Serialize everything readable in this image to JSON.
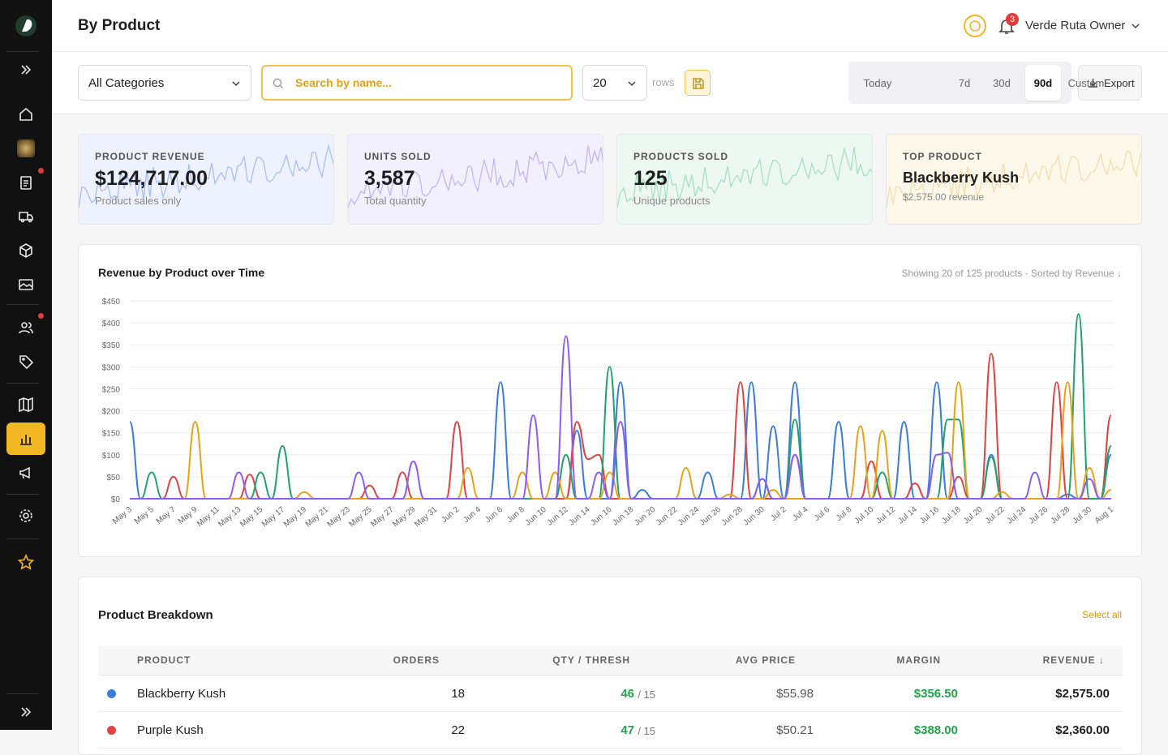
{
  "header": {
    "title": "By Product",
    "notifications": "3",
    "user": "Verde Ruta Owner"
  },
  "filters": {
    "category": "All Categories",
    "search_placeholder": "Search by name...",
    "rows_value": "20",
    "rows_label": "rows",
    "ranges": [
      "Today",
      "7d",
      "30d",
      "90d",
      "Custom"
    ],
    "active_range": 3,
    "export": "Export"
  },
  "kpis": [
    {
      "label": "PRODUCT REVENUE",
      "value": "$124,717.00",
      "sub": "Product sales only",
      "bg": "#eef2fd",
      "line": "#a9bff0"
    },
    {
      "label": "UNITS SOLD",
      "value": "3,587",
      "sub": "Total quantity",
      "bg": "#f2f0fc",
      "line": "#c3b6f2"
    },
    {
      "label": "PRODUCTS SOLD",
      "value": "125",
      "sub": "Unique products",
      "bg": "#edf8f2",
      "line": "#a8e0c2"
    },
    {
      "label": "TOP PRODUCT",
      "value": "Blackberry Kush",
      "sub": "$2,575.00 revenue",
      "bg": "#fdf8ea",
      "line": "#f3ddb0"
    }
  ],
  "chart_data": {
    "type": "line",
    "title": "Revenue by Product over Time",
    "subtitle": "Showing 20 of 125 products · Sorted by Revenue ↓",
    "categories": [
      "May 3",
      null,
      "May 5",
      null,
      "May 7",
      null,
      "May 9",
      null,
      "May 11",
      null,
      "May 13",
      null,
      "May 15",
      null,
      "May 17",
      null,
      "May 19",
      null,
      "May 21",
      null,
      "May 23",
      null,
      "May 25",
      null,
      "May 27",
      null,
      "May 29",
      null,
      "May 31",
      null,
      "Jun 2",
      null,
      "Jun 4",
      null,
      "Jun 6",
      null,
      "Jun 8",
      null,
      "Jun 10",
      null,
      "Jun 12",
      null,
      "Jun 14",
      null,
      "Jun 16",
      null,
      "Jun 18",
      null,
      "Jun 20",
      null,
      "Jun 22",
      null,
      "Jun 24",
      null,
      "Jun 26",
      null,
      "Jun 28",
      null,
      "Jun 30",
      null,
      "Jul 2",
      null,
      "Jul 4",
      null,
      "Jul 6",
      null,
      "Jul 8",
      null,
      "Jul 10",
      null,
      "Jul 12",
      null,
      "Jul 14",
      null,
      "Jul 16",
      null,
      "Jul 18",
      null,
      "Jul 20",
      null,
      "Jul 22",
      null,
      "Jul 24",
      null,
      "Jul 26",
      null,
      "Jul 28",
      null,
      "Jul 30",
      null,
      "Aug 1"
    ],
    "series": [
      {
        "color": "#3b7ddd",
        "values": [
          175,
          0,
          0,
          0,
          0,
          0,
          0,
          0,
          0,
          0,
          0,
          0,
          0,
          0,
          0,
          0,
          0,
          0,
          0,
          0,
          0,
          0,
          0,
          0,
          0,
          0,
          0,
          0,
          0,
          0,
          0,
          0,
          0,
          0,
          265,
          0,
          0,
          0,
          0,
          0,
          0,
          155,
          0,
          0,
          0,
          265,
          0,
          20,
          0,
          0,
          0,
          0,
          0,
          60,
          0,
          0,
          0,
          265,
          0,
          165,
          0,
          265,
          0,
          0,
          0,
          175,
          0,
          0,
          0,
          0,
          0,
          175,
          0,
          0,
          265,
          0,
          0,
          0,
          0,
          100,
          0,
          0,
          0,
          0,
          0,
          0,
          10,
          0,
          0,
          0,
          100
        ]
      },
      {
        "color": "#e04343",
        "values": [
          0,
          0,
          0,
          0,
          50,
          0,
          0,
          0,
          0,
          0,
          0,
          55,
          0,
          0,
          0,
          0,
          0,
          0,
          0,
          0,
          0,
          0,
          30,
          0,
          0,
          60,
          0,
          0,
          0,
          0,
          175,
          0,
          0,
          0,
          0,
          0,
          0,
          0,
          0,
          0,
          0,
          175,
          90,
          100,
          0,
          0,
          0,
          0,
          0,
          0,
          0,
          0,
          0,
          0,
          0,
          0,
          265,
          0,
          0,
          0,
          0,
          100,
          0,
          0,
          0,
          0,
          0,
          0,
          85,
          0,
          0,
          0,
          35,
          0,
          0,
          0,
          50,
          0,
          0,
          330,
          0,
          0,
          0,
          0,
          0,
          265,
          0,
          0,
          0,
          0,
          190
        ]
      },
      {
        "color": "#22a36b",
        "values": [
          0,
          0,
          60,
          0,
          0,
          0,
          0,
          0,
          0,
          0,
          0,
          0,
          60,
          0,
          120,
          0,
          0,
          0,
          0,
          0,
          0,
          0,
          0,
          0,
          0,
          0,
          0,
          0,
          0,
          0,
          0,
          0,
          0,
          0,
          0,
          0,
          0,
          0,
          0,
          0,
          100,
          0,
          0,
          0,
          300,
          0,
          0,
          0,
          0,
          0,
          0,
          0,
          0,
          0,
          0,
          0,
          0,
          0,
          45,
          0,
          0,
          180,
          0,
          0,
          0,
          0,
          0,
          0,
          0,
          60,
          0,
          0,
          0,
          0,
          0,
          180,
          180,
          0,
          0,
          95,
          0,
          0,
          0,
          0,
          0,
          0,
          0,
          420,
          0,
          0,
          120
        ]
      },
      {
        "color": "#e8a21c",
        "values": [
          0,
          0,
          0,
          0,
          0,
          0,
          175,
          0,
          0,
          0,
          0,
          0,
          0,
          0,
          0,
          0,
          15,
          0,
          0,
          0,
          0,
          0,
          0,
          0,
          0,
          0,
          0,
          0,
          0,
          0,
          0,
          70,
          0,
          0,
          0,
          0,
          60,
          0,
          0,
          60,
          0,
          0,
          0,
          0,
          60,
          0,
          0,
          0,
          0,
          0,
          0,
          70,
          0,
          0,
          0,
          10,
          0,
          0,
          0,
          20,
          0,
          0,
          0,
          0,
          0,
          0,
          0,
          165,
          0,
          155,
          0,
          0,
          0,
          0,
          0,
          0,
          265,
          0,
          0,
          0,
          15,
          0,
          0,
          0,
          0,
          0,
          265,
          0,
          70,
          0,
          20
        ]
      },
      {
        "color": "#8b5cf6",
        "values": [
          0,
          0,
          0,
          0,
          0,
          0,
          0,
          0,
          0,
          0,
          60,
          0,
          0,
          0,
          0,
          0,
          0,
          0,
          0,
          0,
          0,
          60,
          0,
          0,
          0,
          0,
          85,
          0,
          0,
          0,
          0,
          0,
          0,
          0,
          0,
          0,
          0,
          190,
          0,
          0,
          370,
          0,
          0,
          60,
          0,
          175,
          0,
          0,
          0,
          0,
          0,
          0,
          0,
          0,
          0,
          0,
          0,
          0,
          45,
          0,
          0,
          100,
          0,
          0,
          0,
          0,
          0,
          0,
          0,
          0,
          0,
          0,
          0,
          0,
          100,
          105,
          0,
          0,
          0,
          0,
          0,
          0,
          0,
          60,
          0,
          0,
          0,
          0,
          45,
          0,
          0
        ]
      }
    ],
    "ylim": [
      0,
      450
    ],
    "yticks": [
      {
        "value": 0,
        "label": "$0"
      },
      {
        "value": 50,
        "label": "$50"
      },
      {
        "value": 100,
        "label": "$100"
      },
      {
        "value": 150,
        "label": "$150"
      },
      {
        "value": 200,
        "label": "$200"
      },
      {
        "value": 250,
        "label": "$250"
      },
      {
        "value": 300,
        "label": "$300"
      },
      {
        "value": 350,
        "label": "$350"
      },
      {
        "value": 400,
        "label": "$400"
      },
      {
        "value": 450,
        "label": "$450"
      }
    ],
    "grid": true
  },
  "table": {
    "title": "Product Breakdown",
    "select_all": "Select all",
    "columns": [
      "PRODUCT",
      "ORDERS",
      "QTY / THRESH",
      "AVG PRICE",
      "MARGIN",
      "REVENUE ↓"
    ],
    "rows": [
      {
        "color": "#3b7ddd",
        "product": "Blackberry Kush",
        "orders": "18",
        "qty": "46",
        "thresh": "/ 15",
        "avg_price": "$55.98",
        "margin": "$356.50",
        "revenue": "$2,575.00"
      },
      {
        "color": "#e04343",
        "product": "Purple Kush",
        "orders": "22",
        "qty": "47",
        "thresh": "/ 15",
        "avg_price": "$50.21",
        "margin": "$388.00",
        "revenue": "$2,360.00"
      }
    ]
  }
}
